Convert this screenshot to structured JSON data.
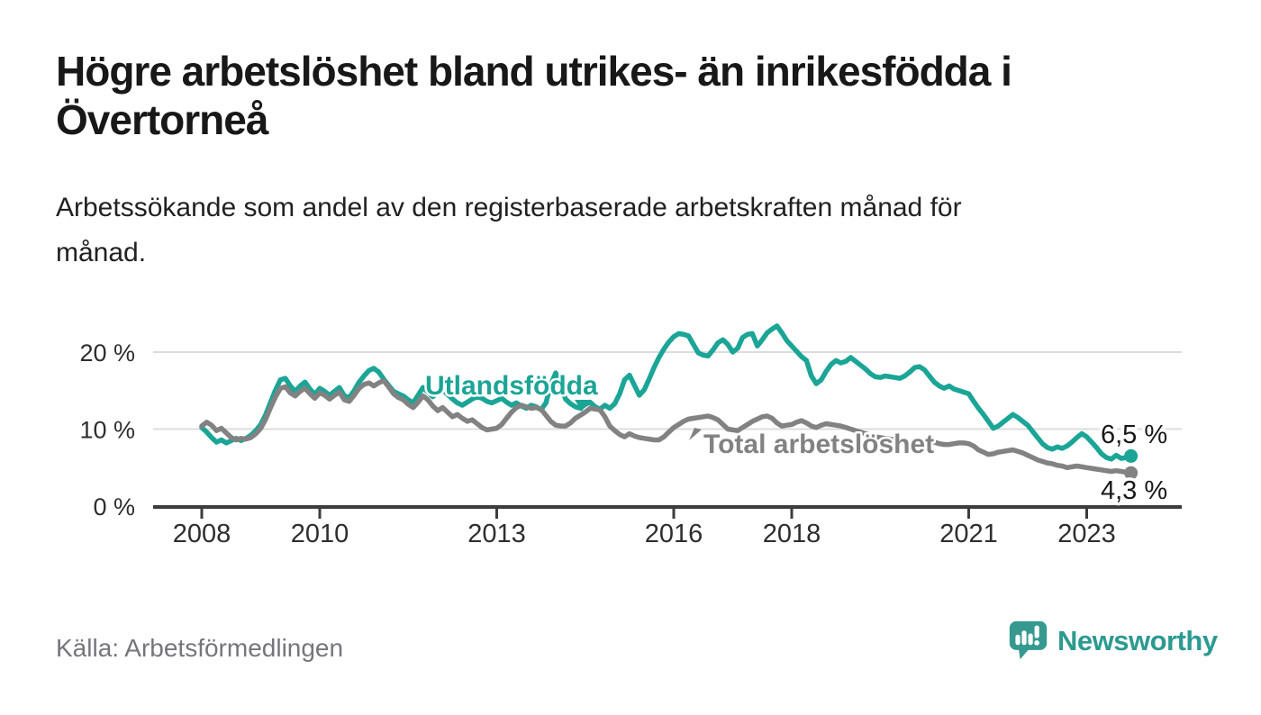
{
  "page": {
    "title": "Högre arbetslöshet bland utrikes- än inrikesfödda i\nÖvertorneå",
    "subtitle": "Arbetssökande som andel av den registerbaserade arbetskraften månad för\nmånad.",
    "source": "Källa: Arbetsförmedlingen",
    "brand": {
      "name": "Newsworthy",
      "icon": "newsworthy-speech-bubble-chart-icon",
      "color": "#2c9a91"
    }
  },
  "colors": {
    "background": "#ffffff",
    "title_text": "#181818",
    "axis_text": "#2e2e2e",
    "gridline": "#dcdcdc",
    "axis_line": "#3c3c3c",
    "source_text": "#75757c",
    "series_teal": "#1ba596",
    "series_gray": "#828282"
  },
  "chart_data": {
    "type": "line",
    "title": "Högre arbetslöshet bland utrikes- än inrikesfödda i Övertorneå",
    "subtitle": "Arbetssökande som andel av den registerbaserade arbetskraften månad för månad.",
    "x_unit": "month",
    "x_start": "2008-01",
    "x_end": "2023-10",
    "ylim": [
      0,
      24
    ],
    "grid": "horizontal",
    "legend_position": "inline-annotations",
    "y_ticks": [
      {
        "value": 0,
        "label": "0 %"
      },
      {
        "value": 10,
        "label": "10 %"
      },
      {
        "value": 20,
        "label": "20 %"
      }
    ],
    "x_ticks": [
      {
        "year": 2008,
        "label": "2008"
      },
      {
        "year": 2010,
        "label": "2010"
      },
      {
        "year": 2013,
        "label": "2013"
      },
      {
        "year": 2016,
        "label": "2016"
      },
      {
        "year": 2018,
        "label": "2018"
      },
      {
        "year": 2021,
        "label": "2021"
      },
      {
        "year": 2023,
        "label": "2023"
      }
    ],
    "series": [
      {
        "id": "utlandsfodda",
        "name": "Utlandsfödda",
        "color": "#1ba596",
        "end_value": 6.5,
        "end_label": "6,5 %",
        "values": [
          10.2,
          9.6,
          8.9,
          8.3,
          8.6,
          8.2,
          8.5,
          8.8,
          8.5,
          8.8,
          9.2,
          9.8,
          10.6,
          11.9,
          13.5,
          15.1,
          16.4,
          16.6,
          15.6,
          14.9,
          15.6,
          16.1,
          15.2,
          14.5,
          15.3,
          14.9,
          14.4,
          14.9,
          15.4,
          14.3,
          14.1,
          15.0,
          16.1,
          16.9,
          17.6,
          17.9,
          17.4,
          16.5,
          15.7,
          14.9,
          14.6,
          14.3,
          13.8,
          13.4,
          14.4,
          15.4,
          14.8,
          14.2,
          14.8,
          15.1,
          14.5,
          13.9,
          13.4,
          13.1,
          13.5,
          13.9,
          14.2,
          14.0,
          13.6,
          13.4,
          13.7,
          14.0,
          13.5,
          13.1,
          13.4,
          13.0,
          12.7,
          13.1,
          12.9,
          12.5,
          13.4,
          15.8,
          17.3,
          15.6,
          13.9,
          13.3,
          12.9,
          12.7,
          13.2,
          13.5,
          12.9,
          12.6,
          13.1,
          12.7,
          13.3,
          14.6,
          16.4,
          17.0,
          15.7,
          14.4,
          15.1,
          16.5,
          18.0,
          19.3,
          20.4,
          21.3,
          22.0,
          22.4,
          22.3,
          22.1,
          21.0,
          19.9,
          19.6,
          19.5,
          20.3,
          21.2,
          21.6,
          21.0,
          20.0,
          20.5,
          21.9,
          22.3,
          22.4,
          20.8,
          21.6,
          22.5,
          23.0,
          23.4,
          22.5,
          21.5,
          20.8,
          20.1,
          19.4,
          18.9,
          16.9,
          15.9,
          16.4,
          17.5,
          18.4,
          18.9,
          18.6,
          18.8,
          19.3,
          18.8,
          18.3,
          17.8,
          17.2,
          16.8,
          16.7,
          16.9,
          16.8,
          16.7,
          16.6,
          16.9,
          17.4,
          18.0,
          18.1,
          17.7,
          16.9,
          16.1,
          15.6,
          15.3,
          15.6,
          15.2,
          15.0,
          14.8,
          14.6,
          13.6,
          12.7,
          11.9,
          11.0,
          10.1,
          10.4,
          10.9,
          11.4,
          11.9,
          11.5,
          11.0,
          10.5,
          9.7,
          8.9,
          8.1,
          7.6,
          7.4,
          7.7,
          7.5,
          7.8,
          8.3,
          8.9,
          9.4,
          9.0,
          8.3,
          7.6,
          6.8,
          6.3,
          6.1,
          6.6,
          6.2,
          6.3,
          6.5
        ]
      },
      {
        "id": "total-arbetsloshet",
        "name": "Total arbetslöshet",
        "color": "#828282",
        "end_value": 4.3,
        "end_label": "4,3 %",
        "values": [
          10.4,
          10.9,
          10.5,
          9.8,
          10.1,
          9.5,
          8.9,
          8.6,
          8.8,
          8.7,
          8.9,
          9.4,
          10.1,
          11.3,
          12.8,
          14.2,
          15.3,
          15.5,
          14.7,
          14.3,
          14.9,
          15.3,
          14.6,
          14.0,
          14.7,
          14.4,
          13.9,
          14.4,
          14.8,
          13.8,
          13.6,
          14.4,
          15.3,
          15.8,
          16.0,
          15.6,
          16.0,
          16.3,
          15.5,
          14.6,
          14.1,
          13.8,
          13.2,
          12.8,
          13.5,
          14.3,
          13.8,
          13.0,
          12.4,
          12.8,
          12.2,
          11.6,
          11.9,
          11.4,
          11.0,
          11.2,
          10.7,
          10.2,
          9.9,
          10.0,
          10.1,
          10.6,
          11.4,
          12.2,
          12.8,
          13.1,
          12.9,
          12.7,
          12.8,
          12.6,
          11.8,
          11.0,
          10.5,
          10.4,
          10.4,
          10.8,
          11.4,
          11.8,
          12.2,
          12.7,
          12.6,
          12.5,
          11.6,
          10.4,
          9.8,
          9.3,
          9.0,
          9.4,
          9.1,
          8.9,
          8.8,
          8.7,
          8.6,
          8.6,
          9.0,
          9.6,
          10.2,
          10.6,
          11.0,
          11.3,
          11.4,
          11.5,
          11.6,
          11.7,
          11.5,
          11.2,
          10.6,
          10.0,
          9.9,
          9.8,
          10.2,
          10.6,
          11.0,
          11.3,
          11.6,
          11.7,
          11.4,
          10.8,
          10.4,
          10.5,
          10.6,
          10.9,
          11.1,
          10.8,
          10.4,
          10.2,
          10.5,
          10.7,
          10.6,
          10.5,
          10.4,
          10.2,
          10.0,
          9.8,
          9.6,
          9.4,
          9.2,
          9.0,
          8.9,
          8.8,
          8.7,
          8.6,
          8.5,
          8.4,
          8.2,
          8.1,
          8.2,
          8.4,
          8.5,
          8.3,
          8.1,
          8.0,
          8.0,
          8.1,
          8.2,
          8.2,
          8.1,
          7.8,
          7.3,
          7.0,
          6.7,
          6.8,
          7.0,
          7.1,
          7.2,
          7.3,
          7.1,
          6.9,
          6.6,
          6.3,
          6.0,
          5.8,
          5.6,
          5.5,
          5.3,
          5.2,
          5.0,
          5.1,
          5.2,
          5.1,
          5.0,
          4.9,
          4.8,
          4.7,
          4.6,
          4.5,
          4.6,
          4.5,
          4.4,
          4.3
        ]
      }
    ]
  }
}
